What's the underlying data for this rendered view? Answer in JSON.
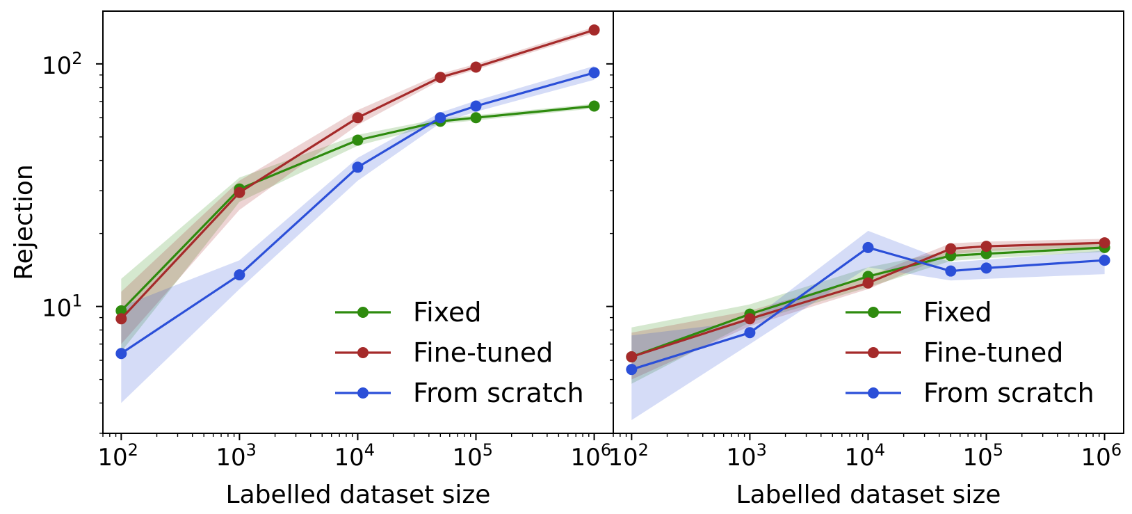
{
  "chart_data": [
    {
      "type": "line",
      "xscale": "log",
      "yscale": "log",
      "xlim": [
        70,
        1450000
      ],
      "ylim": [
        3.0,
        165
      ],
      "xlabel": "Labelled dataset size",
      "ylabel": "Rejection",
      "xticks": [
        {
          "value": 100,
          "base": "10",
          "exp": "2"
        },
        {
          "value": 1000,
          "base": "10",
          "exp": "3"
        },
        {
          "value": 10000,
          "base": "10",
          "exp": "4"
        },
        {
          "value": 100000,
          "base": "10",
          "exp": "5"
        },
        {
          "value": 1000000,
          "base": "10",
          "exp": "6"
        }
      ],
      "yticks": [
        {
          "value": 10,
          "base": "10",
          "exp": "1"
        },
        {
          "value": 100,
          "base": "10",
          "exp": "2"
        }
      ],
      "x": [
        100,
        1000,
        10000,
        50000,
        100000,
        1000000
      ],
      "legend": "lower-right",
      "series": [
        {
          "name": "Fixed",
          "color": "#2e8b0e",
          "values": [
            9.6,
            30.5,
            48.5,
            58.0,
            60.0,
            67.0
          ],
          "lower": [
            6.5,
            27.0,
            46.0,
            56.5,
            58.5,
            65.5
          ],
          "upper": [
            13.0,
            34.0,
            51.0,
            59.5,
            61.5,
            68.5
          ]
        },
        {
          "name": "Fine-tuned",
          "color": "#a52a2a",
          "values": [
            8.9,
            29.5,
            60.0,
            88.0,
            97.0,
            138.0
          ],
          "lower": [
            7.0,
            25.0,
            56.0,
            85.5,
            94.5,
            134.0
          ],
          "upper": [
            11.5,
            33.0,
            64.5,
            91.0,
            100.0,
            142.0
          ]
        },
        {
          "name": "From scratch",
          "color": "#2b4fd8",
          "values": [
            6.4,
            13.5,
            37.5,
            60.0,
            67.0,
            92.0
          ],
          "lower": [
            4.0,
            11.8,
            33.0,
            57.0,
            63.5,
            86.0
          ],
          "upper": [
            10.0,
            15.5,
            41.0,
            63.0,
            70.5,
            98.0
          ]
        }
      ]
    },
    {
      "type": "line",
      "xscale": "log",
      "yscale": "log",
      "xlim": [
        70,
        1450000
      ],
      "ylim": [
        3.0,
        165
      ],
      "xlabel": "Labelled dataset size",
      "ylabel": "",
      "xticks": [
        {
          "value": 100,
          "base": "10",
          "exp": "2"
        },
        {
          "value": 1000,
          "base": "10",
          "exp": "3"
        },
        {
          "value": 10000,
          "base": "10",
          "exp": "4"
        },
        {
          "value": 100000,
          "base": "10",
          "exp": "5"
        },
        {
          "value": 1000000,
          "base": "10",
          "exp": "6"
        }
      ],
      "yticks": [],
      "x": [
        100,
        1000,
        10000,
        50000,
        100000,
        1000000
      ],
      "legend": "lower-right",
      "series": [
        {
          "name": "Fixed",
          "color": "#2e8b0e",
          "values": [
            6.2,
            9.3,
            13.3,
            16.2,
            16.5,
            17.5
          ],
          "lower": [
            4.8,
            8.6,
            12.0,
            15.4,
            15.8,
            16.8
          ],
          "upper": [
            8.2,
            10.2,
            14.5,
            17.0,
            17.3,
            18.3
          ]
        },
        {
          "name": "Fine-tuned",
          "color": "#a52a2a",
          "values": [
            6.2,
            8.9,
            12.5,
            17.3,
            17.7,
            18.3
          ],
          "lower": [
            5.0,
            8.3,
            11.8,
            16.4,
            16.9,
            17.6
          ],
          "upper": [
            7.8,
            9.6,
            13.3,
            18.2,
            18.5,
            19.0
          ]
        },
        {
          "name": "From scratch",
          "color": "#2b4fd8",
          "values": [
            5.5,
            7.8,
            17.5,
            14.0,
            14.4,
            15.5
          ],
          "lower": [
            3.4,
            7.0,
            14.5,
            12.8,
            13.0,
            13.6
          ],
          "upper": [
            7.6,
            8.7,
            20.5,
            15.2,
            15.6,
            17.0
          ]
        }
      ]
    }
  ]
}
